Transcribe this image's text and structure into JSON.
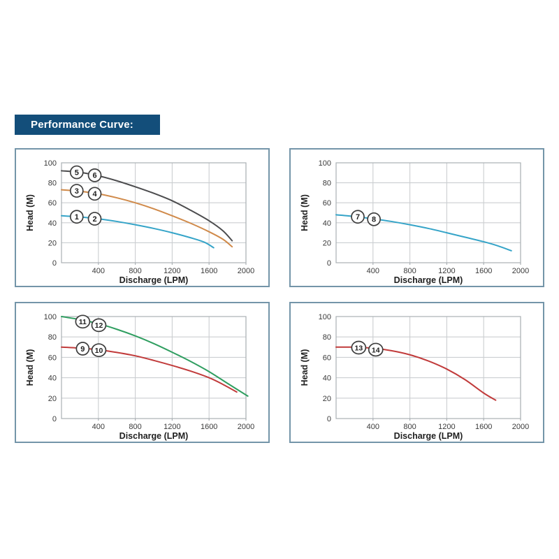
{
  "header": {
    "title": "Performance Curve:",
    "bg_color": "#134e7a",
    "text_color": "#ffffff"
  },
  "style": {
    "panel_border_color": "#7495a9",
    "plot_box_color": "#aab0b4",
    "grid_color": "#cbced1",
    "tick_label_color": "#3a3a3a",
    "axis_title_color": "#1f1f1f",
    "marker_stroke_color": "#3d3d3d",
    "marker_fill_color": "#ffffff",
    "marker_text_color": "#1e1e1e"
  },
  "chart_data": [
    {
      "type": "line",
      "position": "top-left",
      "xlabel": "Discharge (LPM)",
      "ylabel": "Head (M)",
      "xlim": [
        0,
        2000
      ],
      "ylim": [
        0,
        100
      ],
      "x_ticks": [
        400,
        800,
        1200,
        1600,
        2000
      ],
      "y_ticks": [
        0,
        20,
        40,
        60,
        80,
        100
      ],
      "grid": true,
      "series": [
        {
          "name": "curve-5-6",
          "color": "#4c4c4e",
          "points": [
            [
              0,
              92
            ],
            [
              200,
              90.5
            ],
            [
              400,
              87
            ],
            [
              600,
              82
            ],
            [
              800,
              76
            ],
            [
              1000,
              69.5
            ],
            [
              1200,
              62
            ],
            [
              1400,
              52.5
            ],
            [
              1600,
              42
            ],
            [
              1750,
              32
            ],
            [
              1850,
              22
            ]
          ],
          "markers": [
            {
              "label": "5",
              "x": 165,
              "y": 90.5
            },
            {
              "label": "6",
              "x": 360,
              "y": 87.5
            }
          ]
        },
        {
          "name": "curve-3-4",
          "color": "#d08a4a",
          "points": [
            [
              0,
              73
            ],
            [
              200,
              71.5
            ],
            [
              400,
              69
            ],
            [
              600,
              65
            ],
            [
              800,
              60
            ],
            [
              1000,
              54
            ],
            [
              1200,
              47
            ],
            [
              1400,
              39.5
            ],
            [
              1600,
              31
            ],
            [
              1750,
              23.5
            ],
            [
              1850,
              16
            ]
          ],
          "markers": [
            {
              "label": "3",
              "x": 165,
              "y": 72
            },
            {
              "label": "4",
              "x": 360,
              "y": 69
            }
          ]
        },
        {
          "name": "curve-1-2",
          "color": "#35a4c8",
          "points": [
            [
              0,
              47
            ],
            [
              200,
              45.8
            ],
            [
              400,
              44
            ],
            [
              600,
              41.3
            ],
            [
              800,
              38
            ],
            [
              1000,
              34.3
            ],
            [
              1200,
              30
            ],
            [
              1400,
              25
            ],
            [
              1550,
              20.5
            ],
            [
              1650,
              15
            ]
          ],
          "markers": [
            {
              "label": "1",
              "x": 165,
              "y": 46
            },
            {
              "label": "2",
              "x": 360,
              "y": 44
            }
          ]
        }
      ]
    },
    {
      "type": "line",
      "position": "top-right",
      "xlabel": "Discharge (LPM)",
      "ylabel": "Head (M)",
      "xlim": [
        0,
        2000
      ],
      "ylim": [
        0,
        100
      ],
      "x_ticks": [
        400,
        800,
        1200,
        1600,
        2000
      ],
      "y_ticks": [
        0,
        20,
        40,
        60,
        80,
        100
      ],
      "grid": true,
      "series": [
        {
          "name": "curve-7-8",
          "color": "#35a4c8",
          "points": [
            [
              0,
              48
            ],
            [
              200,
              46.3
            ],
            [
              400,
              44
            ],
            [
              600,
              41.3
            ],
            [
              800,
              38
            ],
            [
              1000,
              34.3
            ],
            [
              1200,
              30
            ],
            [
              1400,
              25.5
            ],
            [
              1600,
              21
            ],
            [
              1750,
              17
            ],
            [
              1900,
              12
            ]
          ],
          "markers": [
            {
              "label": "7",
              "x": 235,
              "y": 46
            },
            {
              "label": "8",
              "x": 410,
              "y": 43.5
            }
          ]
        }
      ]
    },
    {
      "type": "line",
      "position": "bottom-left",
      "xlabel": "Discharge (LPM)",
      "ylabel": "Head (M)",
      "xlim": [
        0,
        2000
      ],
      "ylim": [
        0,
        100
      ],
      "x_ticks": [
        400,
        800,
        1200,
        1600,
        2000
      ],
      "y_ticks": [
        0,
        20,
        40,
        60,
        80,
        100
      ],
      "grid": true,
      "series": [
        {
          "name": "curve-11-12",
          "color": "#2f9e60",
          "points": [
            [
              0,
              100
            ],
            [
              200,
              97
            ],
            [
              400,
              93
            ],
            [
              600,
              87.5
            ],
            [
              800,
              81
            ],
            [
              1000,
              73.5
            ],
            [
              1200,
              65
            ],
            [
              1400,
              56
            ],
            [
              1600,
              46
            ],
            [
              1800,
              34.5
            ],
            [
              2020,
              22
            ]
          ],
          "markers": [
            {
              "label": "11",
              "x": 230,
              "y": 95
            },
            {
              "label": "12",
              "x": 405,
              "y": 91.5
            }
          ]
        },
        {
          "name": "curve-9-10",
          "color": "#c13b3b",
          "points": [
            [
              0,
              70
            ],
            [
              200,
              69
            ],
            [
              400,
              67.5
            ],
            [
              600,
              64.8
            ],
            [
              800,
              61.5
            ],
            [
              1000,
              57
            ],
            [
              1200,
              52
            ],
            [
              1400,
              46.5
            ],
            [
              1600,
              40
            ],
            [
              1750,
              33.5
            ],
            [
              1900,
              26
            ]
          ],
          "markers": [
            {
              "label": "9",
              "x": 230,
              "y": 68.5
            },
            {
              "label": "10",
              "x": 405,
              "y": 67
            }
          ]
        }
      ]
    },
    {
      "type": "line",
      "position": "bottom-right",
      "xlabel": "Discharge (LPM)",
      "ylabel": "Head (M)",
      "xlim": [
        0,
        2000
      ],
      "ylim": [
        0,
        100
      ],
      "x_ticks": [
        400,
        800,
        1200,
        1600,
        2000
      ],
      "y_ticks": [
        0,
        20,
        40,
        60,
        80,
        100
      ],
      "grid": true,
      "series": [
        {
          "name": "curve-13-14",
          "color": "#c13b3b",
          "points": [
            [
              0,
              70
            ],
            [
              200,
              70
            ],
            [
              400,
              69
            ],
            [
              600,
              66.5
            ],
            [
              800,
              62.5
            ],
            [
              1000,
              56.5
            ],
            [
              1200,
              48.5
            ],
            [
              1400,
              38
            ],
            [
              1600,
              25
            ],
            [
              1730,
              18
            ]
          ],
          "markers": [
            {
              "label": "13",
              "x": 245,
              "y": 69.5
            },
            {
              "label": "14",
              "x": 430,
              "y": 67.5
            }
          ]
        }
      ]
    }
  ]
}
